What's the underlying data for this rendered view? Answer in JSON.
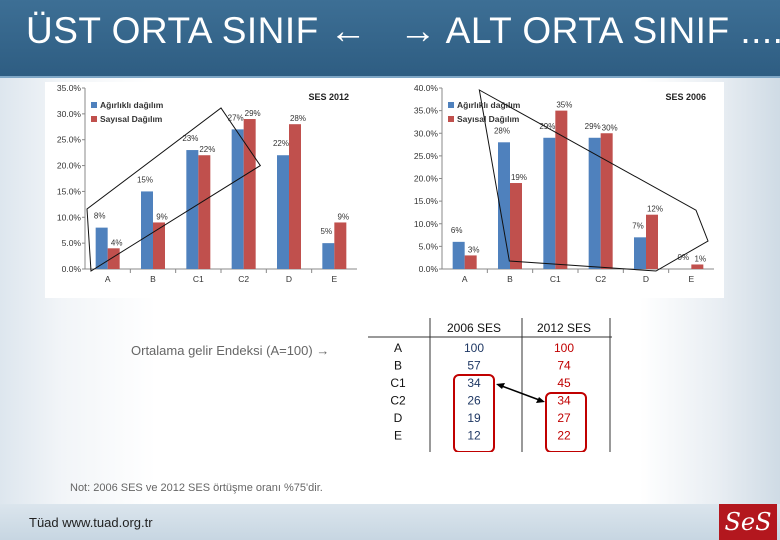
{
  "title": {
    "left": "ÜST ORTA SINIF",
    "right": "ALT ORTA SINIF ....",
    "arrow_left": "←",
    "arrow_right": "→"
  },
  "chart_data": [
    {
      "type": "bar",
      "title": "SES 2012",
      "categories": [
        "A",
        "B",
        "C1",
        "C2",
        "D",
        "E"
      ],
      "series": [
        {
          "name": "Ağırlıklı dağılım",
          "values": [
            8,
            15,
            23,
            27,
            22,
            5
          ],
          "labels": [
            "8%",
            "15%",
            "23%",
            "27%",
            "22%",
            "5%"
          ],
          "color": "#4f81bd"
        },
        {
          "name": "Sayısal Dağılım",
          "values": [
            4,
            9,
            22,
            29,
            28,
            9
          ],
          "labels": [
            "4%",
            "9%",
            "22%",
            "29%",
            "28%",
            "9%"
          ],
          "color": "#c0504d"
        }
      ],
      "ylim": [
        0,
        35
      ],
      "yticks": [
        "0.0%",
        "5.0%",
        "10.0%",
        "15.0%",
        "20.0%",
        "25.0%",
        "30.0%",
        "35.0%"
      ],
      "legend": "top-left",
      "grid": false
    },
    {
      "type": "bar",
      "title": "SES 2006",
      "categories": [
        "A",
        "B",
        "C1",
        "C2",
        "D",
        "E"
      ],
      "series": [
        {
          "name": "Ağırlıklı dağılım",
          "values": [
            6,
            28,
            29,
            29,
            7,
            0
          ],
          "labels": [
            "6%",
            "28%",
            "29%",
            "29%",
            "7%",
            "0%"
          ],
          "color": "#4f81bd"
        },
        {
          "name": "Sayısal Dağılım",
          "values": [
            3,
            19,
            35,
            30,
            12,
            1
          ],
          "labels": [
            "3%",
            "19%",
            "35%",
            "30%",
            "12%",
            "1%"
          ],
          "color": "#c0504d"
        }
      ],
      "ylim": [
        0,
        40
      ],
      "yticks": [
        "0.0%",
        "5.0%",
        "10.0%",
        "15.0%",
        "20.0%",
        "25.0%",
        "30.0%",
        "35.0%",
        "40.0%"
      ],
      "legend": "top-left",
      "grid": false
    }
  ],
  "income_table": {
    "headers": [
      "",
      "2006 SES",
      "2012 SES"
    ],
    "rows": [
      [
        "A",
        "100",
        "100"
      ],
      [
        "B",
        "57",
        "74"
      ],
      [
        "C1",
        "34",
        "45"
      ],
      [
        "C2",
        "26",
        "34"
      ],
      [
        "D",
        "19",
        "27"
      ],
      [
        "E",
        "12",
        "22"
      ]
    ],
    "col2006_color": "#1f3864",
    "col2012_color": "#c00000"
  },
  "gelir_note": "Ortalama gelir Endeksi (A=100) →",
  "overlap_note": "Not: 2006 SES ve 2012 SES örtüşme oranı %75'dir.",
  "footer": "Tüad www.tuad.org.tr",
  "logo": "SeS"
}
